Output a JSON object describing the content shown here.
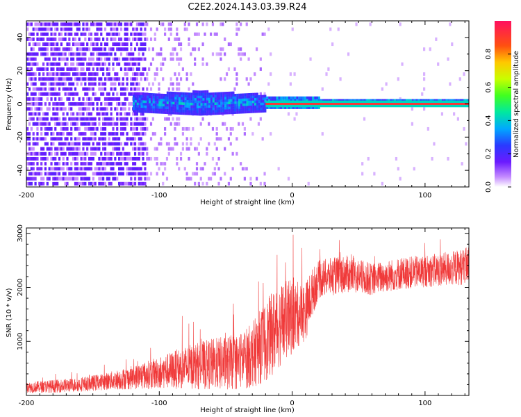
{
  "title": "C2E2.2024.143.03.39.R24",
  "colorbar": {
    "label": "Normalized spectral amplitude",
    "ticks": [
      0.0,
      0.2,
      0.4,
      0.6,
      0.8
    ],
    "tick_labels": [
      "0.0",
      "0.2",
      "0.4",
      "0.6",
      "0.8"
    ],
    "range": [
      0.0,
      1.0
    ]
  },
  "chart_data": [
    {
      "type": "heatmap",
      "xlabel": "Height of straight line (km)",
      "ylabel": "Frequency (Hz)",
      "xlim": [
        -200,
        133
      ],
      "ylim": [
        -50,
        50
      ],
      "xticks": [
        -200,
        -100,
        0,
        100
      ],
      "yticks": [
        -40,
        -20,
        0,
        20,
        40
      ],
      "ytick_labels": [
        "-40",
        "-20",
        "0",
        "20",
        "40"
      ],
      "xtick_labels": [
        "-200",
        "-100",
        "0",
        "100"
      ],
      "features": {
        "noise_region_x": [
          -200,
          -110
        ],
        "sparse_noise_x": [
          -110,
          -20
        ],
        "spectral_band_x": [
          -120,
          133
        ],
        "band_center_hz": 0,
        "strong_line_x": [
          -20,
          133
        ]
      }
    },
    {
      "type": "line",
      "xlabel": "Height of straight line (km)",
      "ylabel": "SNR (10 * v/v)",
      "xlim": [
        -200,
        133
      ],
      "ylim": [
        0,
        3100
      ],
      "xticks": [
        -200,
        -100,
        0,
        100
      ],
      "yticks": [
        1000,
        2000,
        3000
      ],
      "xtick_labels": [
        "-200",
        "-100",
        "0",
        "100"
      ],
      "ytick_labels": [
        "1000",
        "2000",
        "3000"
      ],
      "series": [
        {
          "color": "#f03a3a",
          "envelope_x": [
            -200,
            -180,
            -160,
            -140,
            -120,
            -100,
            -80,
            -60,
            -40,
            -30,
            -20,
            -10,
            0,
            5,
            10,
            15,
            20,
            40,
            60,
            80,
            100,
            120,
            133
          ],
          "envelope_mid": [
            150,
            170,
            200,
            260,
            330,
            420,
            520,
            580,
            620,
            750,
            1000,
            1300,
            1450,
            1500,
            1550,
            1900,
            2150,
            2250,
            2150,
            2250,
            2300,
            2350,
            2400
          ],
          "envelope_amp": [
            100,
            120,
            130,
            160,
            220,
            300,
            400,
            480,
            520,
            600,
            750,
            800,
            700,
            600,
            550,
            450,
            350,
            350,
            300,
            300,
            300,
            320,
            350
          ]
        }
      ]
    }
  ]
}
